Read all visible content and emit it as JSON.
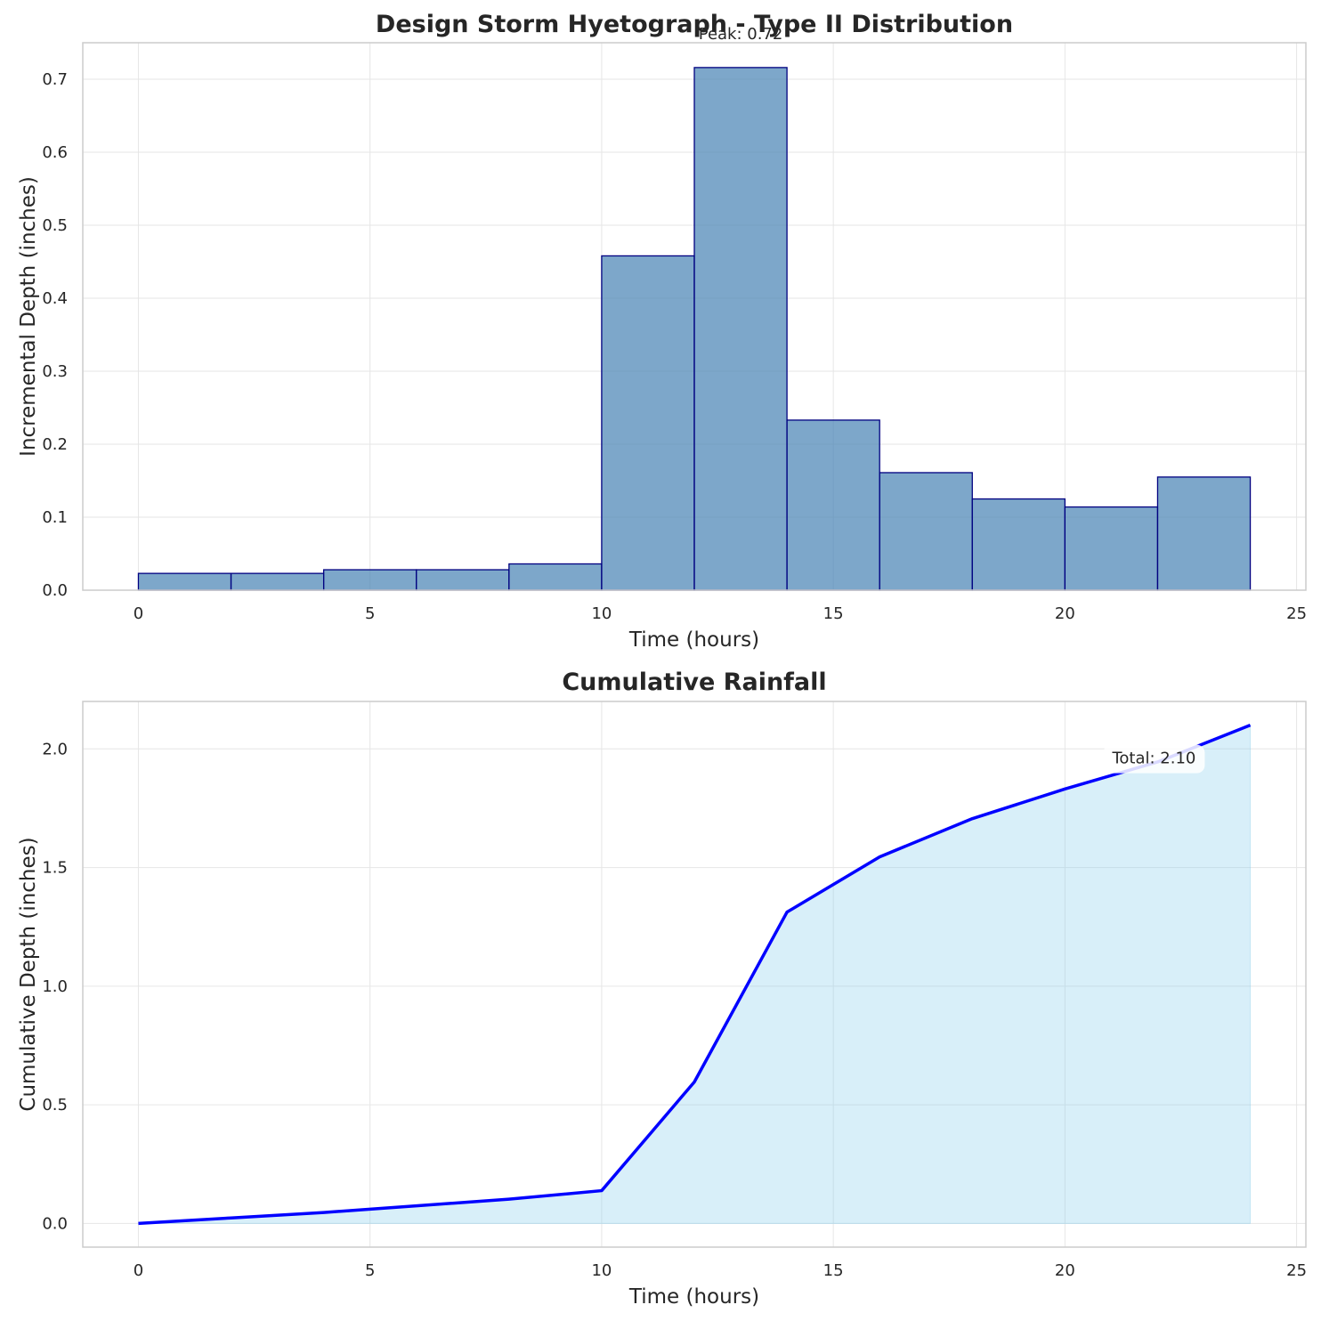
{
  "chart_data": [
    {
      "type": "bar",
      "title": "Design Storm Hyetograph - Type II Distribution",
      "xlabel": "Time (hours)",
      "ylabel": "Incremental Depth (inches)",
      "xlim": [
        -1.2,
        25.2
      ],
      "ylim": [
        0,
        0.75
      ],
      "xticks": [
        0,
        5,
        10,
        15,
        20,
        25
      ],
      "yticks": [
        0.0,
        0.1,
        0.2,
        0.3,
        0.4,
        0.5,
        0.6,
        0.7
      ],
      "grid": true,
      "bar_width_hours": 2,
      "bar_starts": [
        0,
        2,
        4,
        6,
        8,
        10,
        12,
        14,
        16,
        18,
        20,
        22
      ],
      "values": [
        0.023,
        0.023,
        0.028,
        0.028,
        0.036,
        0.458,
        0.716,
        0.233,
        0.161,
        0.125,
        0.114,
        0.155
      ],
      "bar_color": "#4682b4",
      "bar_edge_color": "#000080",
      "annotation": {
        "text": "Peak: 0.72",
        "x": 13,
        "y": 0.716
      }
    },
    {
      "type": "area",
      "title": "Cumulative Rainfall",
      "xlabel": "Time (hours)",
      "ylabel": "Cumulative Depth (inches)",
      "xlim": [
        -1.2,
        25.2
      ],
      "ylim": [
        -0.1,
        2.2
      ],
      "xticks": [
        0,
        5,
        10,
        15,
        20,
        25
      ],
      "yticks": [
        0.0,
        0.5,
        1.0,
        1.5,
        2.0
      ],
      "grid": true,
      "x": [
        0,
        2,
        4,
        6,
        8,
        10,
        12,
        14,
        16,
        18,
        20,
        22,
        24
      ],
      "y": [
        0.0,
        0.023,
        0.046,
        0.074,
        0.102,
        0.138,
        0.596,
        1.312,
        1.545,
        1.706,
        1.831,
        1.945,
        2.1
      ],
      "line_color": "#0000ff",
      "fill_color": "#87ceeb",
      "annotation": {
        "text": "Total: 2.10",
        "x": 21,
        "y": 1.95
      }
    }
  ]
}
